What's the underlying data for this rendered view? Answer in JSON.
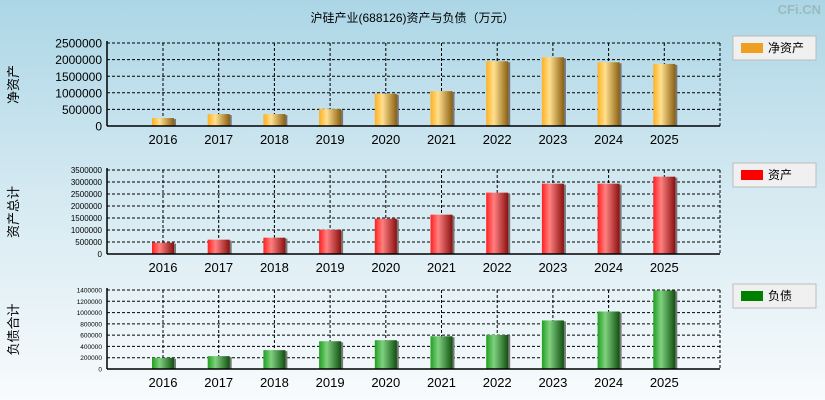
{
  "title": "沪硅产业(688126)资产与负债（万元）",
  "watermark": "CFi.CN",
  "chart_data": [
    {
      "type": "bar",
      "ylabel": "净资产",
      "legend": "净资产",
      "legend_position": "right",
      "color": "#f0a020",
      "categories": [
        "2016",
        "2017",
        "2018",
        "2019",
        "2020",
        "2021",
        "2022",
        "2023",
        "2024",
        "2025"
      ],
      "values": [
        240000,
        360000,
        360000,
        510000,
        970000,
        1050000,
        1950000,
        2070000,
        1920000,
        1870000
      ],
      "yticks": [
        0,
        500000,
        1000000,
        1500000,
        2000000,
        2500000
      ],
      "ylim": [
        0,
        2500000
      ],
      "grid": true
    },
    {
      "type": "bar",
      "ylabel": "资产总计",
      "legend": "资产",
      "legend_position": "right",
      "color": "#ff0000",
      "categories": [
        "2016",
        "2017",
        "2018",
        "2019",
        "2020",
        "2021",
        "2022",
        "2023",
        "2024",
        "2025"
      ],
      "values": [
        472000,
        597000,
        680000,
        1014000,
        1472000,
        1639000,
        2556000,
        2931000,
        2931000,
        3222000
      ],
      "yticks": [
        0,
        500000,
        1000000,
        1500000,
        2000000,
        2500000,
        3000000,
        3500000
      ],
      "ylim": [
        0,
        3500000
      ],
      "grid": true
    },
    {
      "type": "bar",
      "ylabel": "负债合计",
      "legend": "负债",
      "legend_position": "right",
      "color": "#008000",
      "categories": [
        "2016",
        "2017",
        "2018",
        "2019",
        "2020",
        "2021",
        "2022",
        "2023",
        "2024",
        "2025"
      ],
      "values": [
        199000,
        228000,
        334000,
        492000,
        510000,
        580000,
        603000,
        861000,
        1019000,
        1394000
      ],
      "yticks": [
        0,
        200000,
        400000,
        600000,
        800000,
        1000000,
        1200000,
        1400000
      ],
      "ylim": [
        0,
        1400000
      ],
      "grid": true
    }
  ]
}
